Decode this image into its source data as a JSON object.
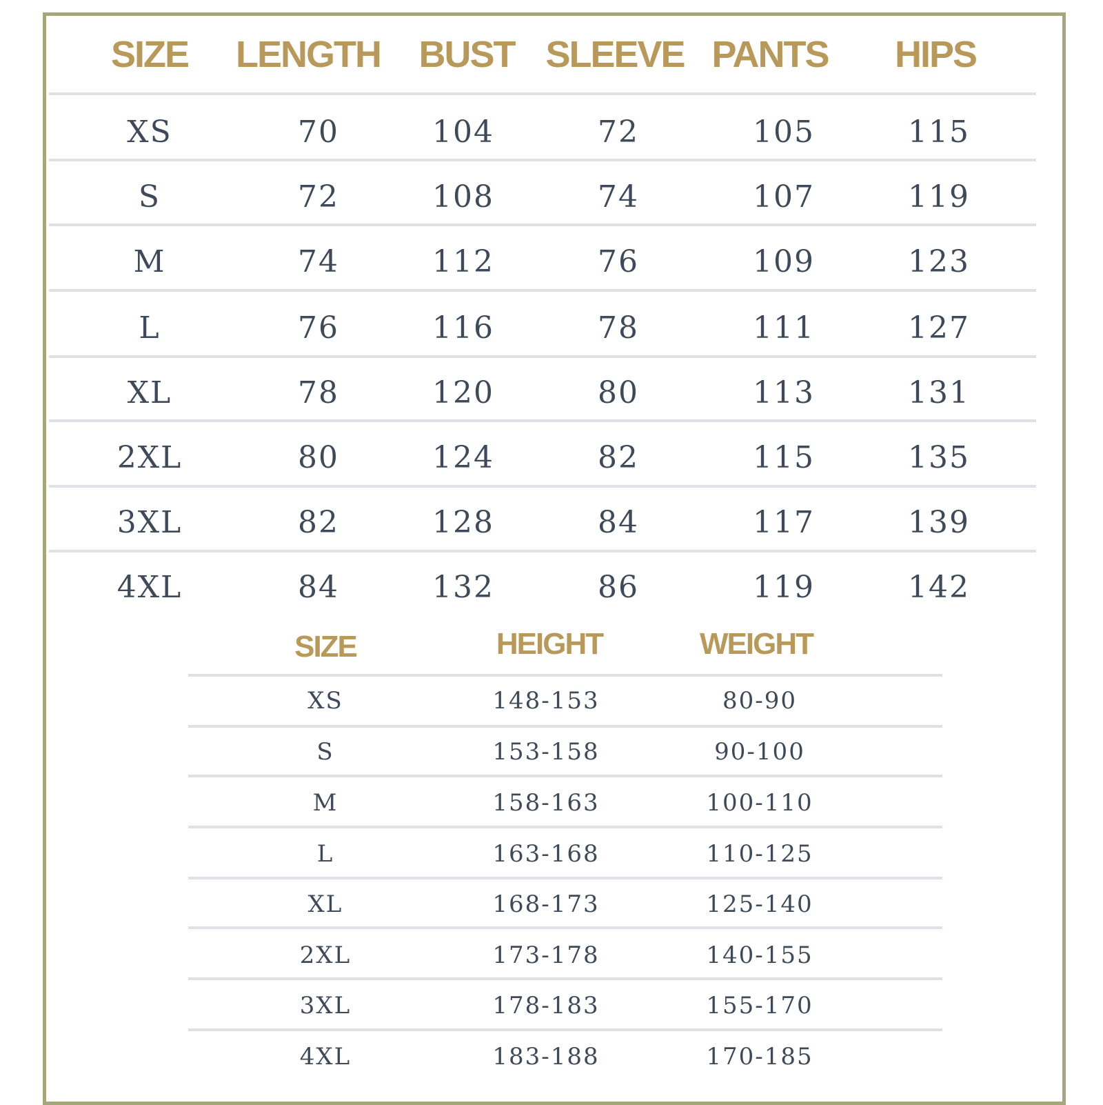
{
  "measurements_table": {
    "headers": [
      "SIZE",
      "LENGTH",
      "BUST",
      "SLEEVE",
      "PANTS",
      "HIPS"
    ],
    "rows": [
      [
        "XS",
        "70",
        "104",
        "72",
        "105",
        "115"
      ],
      [
        "S",
        "72",
        "108",
        "74",
        "107",
        "119"
      ],
      [
        "M",
        "74",
        "112",
        "76",
        "109",
        "123"
      ],
      [
        "L",
        "76",
        "116",
        "78",
        "111",
        "127"
      ],
      [
        "XL",
        "78",
        "120",
        "80",
        "113",
        "131"
      ],
      [
        "2XL",
        "80",
        "124",
        "82",
        "115",
        "135"
      ],
      [
        "3XL",
        "82",
        "128",
        "84",
        "117",
        "139"
      ],
      [
        "4XL",
        "84",
        "132",
        "86",
        "119",
        "142"
      ]
    ]
  },
  "fit_table": {
    "headers": [
      "SIZE",
      "HEIGHT",
      "WEIGHT"
    ],
    "rows": [
      [
        "XS",
        "148-153",
        "80-90"
      ],
      [
        "S",
        "153-158",
        "90-100"
      ],
      [
        "M",
        "158-163",
        "100-110"
      ],
      [
        "L",
        "163-168",
        "110-125"
      ],
      [
        "XL",
        "168-173",
        "125-140"
      ],
      [
        "2XL",
        "173-178",
        "140-155"
      ],
      [
        "3XL",
        "178-183",
        "155-170"
      ],
      [
        "4XL",
        "183-188",
        "170-185"
      ]
    ]
  },
  "colors": {
    "header_text": "#b8995a",
    "cell_text": "#3e4a5a",
    "frame_border": "#a7a67a",
    "row_divider": "#dee1e6"
  }
}
